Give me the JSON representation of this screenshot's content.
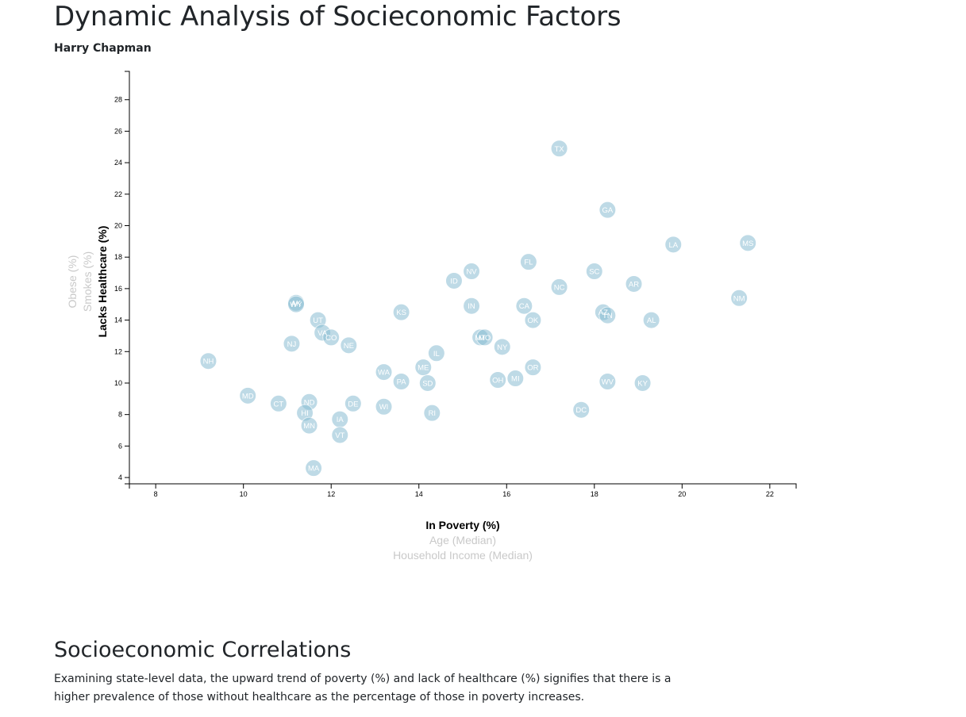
{
  "header": {
    "title": "Dynamic Analysis of Socieconomic Factors",
    "author": "Harry Chapman"
  },
  "chart_data": {
    "type": "scatter",
    "x_axis": {
      "active_label": "In Poverty (%)",
      "options": [
        "In Poverty (%)",
        "Age (Median)",
        "Household Income (Median)"
      ],
      "range": [
        7.4,
        22.6
      ],
      "ticks": [
        8,
        10,
        12,
        14,
        16,
        18,
        20,
        22
      ]
    },
    "y_axis": {
      "active_label": "Lacks Healthcare (%)",
      "options": [
        "Lacks Healthcare (%)",
        "Smokes (%)",
        "Obese (%)"
      ],
      "range": [
        3.6,
        29.8
      ],
      "ticks": [
        4,
        6,
        8,
        10,
        12,
        14,
        16,
        18,
        20,
        22,
        24,
        26,
        28
      ]
    },
    "marker_color": "#89bdd3",
    "points": [
      {
        "state": "TX",
        "x": 17.2,
        "y": 24.9
      },
      {
        "state": "GA",
        "x": 18.3,
        "y": 21.0
      },
      {
        "state": "LA",
        "x": 19.8,
        "y": 18.8
      },
      {
        "state": "MS",
        "x": 21.5,
        "y": 18.9
      },
      {
        "state": "FL",
        "x": 16.5,
        "y": 17.7
      },
      {
        "state": "NV",
        "x": 15.2,
        "y": 17.1
      },
      {
        "state": "SC",
        "x": 18.0,
        "y": 17.1
      },
      {
        "state": "ID",
        "x": 14.8,
        "y": 16.5
      },
      {
        "state": "NC",
        "x": 17.2,
        "y": 16.1
      },
      {
        "state": "AR",
        "x": 18.9,
        "y": 16.3
      },
      {
        "state": "NM",
        "x": 21.3,
        "y": 15.4
      },
      {
        "state": "AK",
        "x": 11.2,
        "y": 15.1
      },
      {
        "state": "WY",
        "x": 11.2,
        "y": 15.0
      },
      {
        "state": "IN",
        "x": 15.2,
        "y": 14.9
      },
      {
        "state": "CA",
        "x": 16.4,
        "y": 14.9
      },
      {
        "state": "KS",
        "x": 13.6,
        "y": 14.5
      },
      {
        "state": "AZ",
        "x": 18.2,
        "y": 14.5
      },
      {
        "state": "TN",
        "x": 18.3,
        "y": 14.3
      },
      {
        "state": "AL",
        "x": 19.3,
        "y": 14.0
      },
      {
        "state": "UT",
        "x": 11.7,
        "y": 14.0
      },
      {
        "state": "OK",
        "x": 16.6,
        "y": 14.0
      },
      {
        "state": "VA",
        "x": 11.8,
        "y": 13.2
      },
      {
        "state": "CO",
        "x": 12.0,
        "y": 12.9
      },
      {
        "state": "MT",
        "x": 15.4,
        "y": 12.9
      },
      {
        "state": "MO",
        "x": 15.5,
        "y": 12.9
      },
      {
        "state": "NJ",
        "x": 11.1,
        "y": 12.5
      },
      {
        "state": "NE",
        "x": 12.4,
        "y": 12.4
      },
      {
        "state": "NY",
        "x": 15.9,
        "y": 12.3
      },
      {
        "state": "IL",
        "x": 14.4,
        "y": 11.9
      },
      {
        "state": "NH",
        "x": 9.2,
        "y": 11.4
      },
      {
        "state": "ME",
        "x": 14.1,
        "y": 11.0
      },
      {
        "state": "OR",
        "x": 16.6,
        "y": 11.0
      },
      {
        "state": "WA",
        "x": 13.2,
        "y": 10.7
      },
      {
        "state": "OH",
        "x": 15.8,
        "y": 10.2
      },
      {
        "state": "MI",
        "x": 16.2,
        "y": 10.3
      },
      {
        "state": "PA",
        "x": 13.6,
        "y": 10.1
      },
      {
        "state": "SD",
        "x": 14.2,
        "y": 10.0
      },
      {
        "state": "WV",
        "x": 18.3,
        "y": 10.1
      },
      {
        "state": "KY",
        "x": 19.1,
        "y": 10.0
      },
      {
        "state": "MD",
        "x": 10.1,
        "y": 9.2
      },
      {
        "state": "CT",
        "x": 10.8,
        "y": 8.7
      },
      {
        "state": "ND",
        "x": 11.5,
        "y": 8.8
      },
      {
        "state": "DE",
        "x": 12.5,
        "y": 8.7
      },
      {
        "state": "WI",
        "x": 13.2,
        "y": 8.5
      },
      {
        "state": "DC",
        "x": 17.7,
        "y": 8.3
      },
      {
        "state": "HI",
        "x": 11.4,
        "y": 8.1
      },
      {
        "state": "RI",
        "x": 14.3,
        "y": 8.1
      },
      {
        "state": "IA",
        "x": 12.2,
        "y": 7.7
      },
      {
        "state": "MN",
        "x": 11.5,
        "y": 7.3
      },
      {
        "state": "VT",
        "x": 12.2,
        "y": 6.7
      },
      {
        "state": "MA",
        "x": 11.6,
        "y": 4.6
      }
    ]
  },
  "analysis": {
    "heading": "Socioeconomic Correlations",
    "body": "Examining state-level data, the upward trend of poverty (%) and lack of healthcare (%) signifies that there is a higher prevalence of those without healthcare as the percentage of those in poverty increases."
  }
}
